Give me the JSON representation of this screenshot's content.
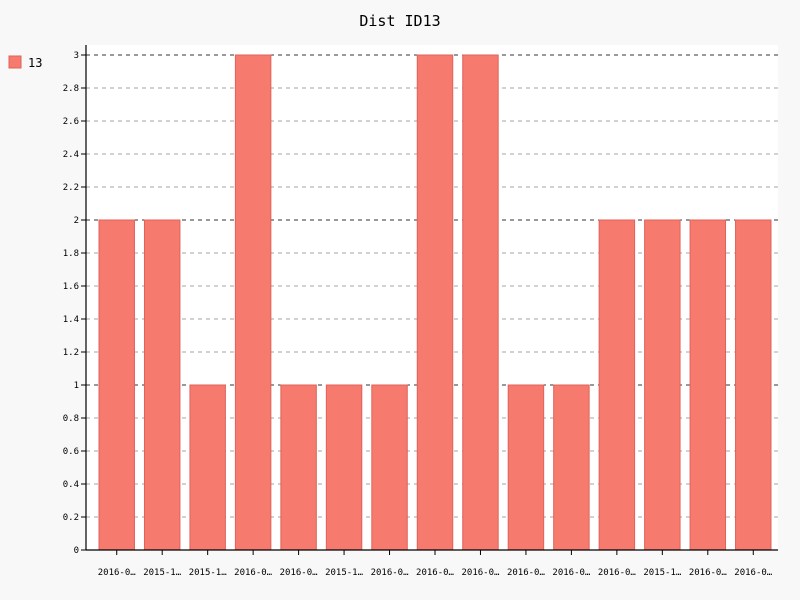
{
  "chart_data": {
    "type": "bar",
    "title": "Dist ID13",
    "categories": [
      "2016-0…",
      "2015-1…",
      "2015-1…",
      "2016-0…",
      "2016-0…",
      "2015-1…",
      "2016-0…",
      "2016-0…",
      "2016-0…",
      "2016-0…",
      "2016-0…",
      "2016-0…",
      "2015-1…",
      "2016-0…",
      "2016-0…"
    ],
    "series": [
      {
        "name": "13",
        "values": [
          2,
          2,
          1,
          3,
          1,
          1,
          1,
          3,
          3,
          1,
          1,
          2,
          2,
          2,
          2
        ],
        "color": "#f67a6e",
        "stroke": "#e0625a"
      }
    ],
    "ylim": [
      0,
      3
    ],
    "yticks": [
      "0",
      "0.2",
      "0.4",
      "0.6",
      "0.8",
      "1",
      "1.2",
      "1.4",
      "1.6",
      "1.8",
      "2",
      "2.2",
      "2.4",
      "2.6",
      "2.8",
      "3"
    ],
    "grid": true,
    "legend_position": "top-left",
    "background": "#f8f8f8",
    "plot_background": "#ffffff"
  }
}
